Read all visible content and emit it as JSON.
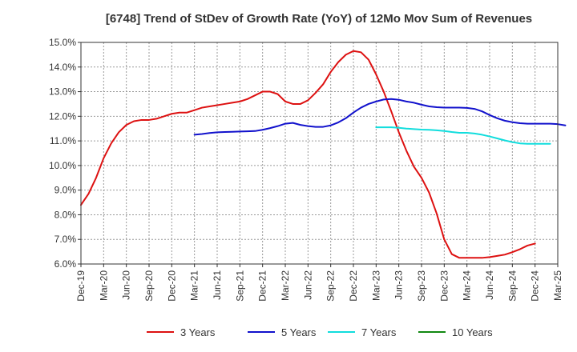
{
  "chart_data": {
    "type": "line",
    "title": "[6748]  Trend of StDev of Growth Rate (YoY) of 12Mo Mov Sum of Revenues",
    "xlabel": "",
    "ylabel": "",
    "ylim": [
      6.0,
      15.0
    ],
    "y_ticks": [
      6.0,
      7.0,
      8.0,
      9.0,
      10.0,
      11.0,
      12.0,
      13.0,
      14.0,
      15.0
    ],
    "y_tick_labels": [
      "6.0%",
      "7.0%",
      "8.0%",
      "9.0%",
      "10.0%",
      "11.0%",
      "12.0%",
      "13.0%",
      "14.0%",
      "15.0%"
    ],
    "x_start": "Dec-19",
    "x_tick_labels": [
      "Dec-19",
      "Mar-20",
      "Jun-20",
      "Sep-20",
      "Dec-20",
      "Mar-21",
      "Jun-21",
      "Sep-21",
      "Dec-21",
      "Mar-22",
      "Jun-22",
      "Sep-22",
      "Dec-22",
      "Mar-23",
      "Jun-23",
      "Sep-23",
      "Dec-23",
      "Mar-24",
      "Jun-24",
      "Sep-24",
      "Dec-24",
      "Mar-25"
    ],
    "grid": "dashed",
    "legend_position": "bottom",
    "series": [
      {
        "name": "3 Years",
        "color": "#dd1111",
        "start_month_index": 0,
        "values": [
          8.4,
          8.85,
          9.5,
          10.3,
          10.9,
          11.35,
          11.65,
          11.8,
          11.85,
          11.85,
          11.9,
          12.0,
          12.1,
          12.15,
          12.15,
          12.25,
          12.35,
          12.4,
          12.45,
          12.5,
          12.55,
          12.6,
          12.7,
          12.85,
          13.0,
          13.0,
          12.9,
          12.6,
          12.5,
          12.5,
          12.65,
          12.95,
          13.3,
          13.8,
          14.2,
          14.5,
          14.65,
          14.6,
          14.3,
          13.7,
          13.0,
          12.2,
          11.35,
          10.6,
          9.95,
          9.5,
          8.9,
          8.05,
          7.0,
          6.4,
          6.25,
          6.25,
          6.25,
          6.25,
          6.28,
          6.33,
          6.38,
          6.48,
          6.6,
          6.75,
          6.83
        ]
      },
      {
        "name": "5 Years",
        "color": "#1111cc",
        "start_month_index": 15,
        "values": [
          11.25,
          11.28,
          11.32,
          11.35,
          11.36,
          11.37,
          11.38,
          11.39,
          11.4,
          11.45,
          11.52,
          11.6,
          11.7,
          11.73,
          11.65,
          11.6,
          11.57,
          11.57,
          11.63,
          11.75,
          11.92,
          12.15,
          12.35,
          12.5,
          12.6,
          12.68,
          12.7,
          12.67,
          12.6,
          12.55,
          12.47,
          12.4,
          12.37,
          12.35,
          12.35,
          12.35,
          12.34,
          12.3,
          12.2,
          12.05,
          11.92,
          11.82,
          11.76,
          11.72,
          11.7,
          11.7,
          11.7,
          11.7,
          11.68,
          11.63
        ]
      },
      {
        "name": "7 Years",
        "color": "#11dddd",
        "start_month_index": 39,
        "values": [
          11.55,
          11.55,
          11.55,
          11.53,
          11.5,
          11.48,
          11.46,
          11.45,
          11.43,
          11.4,
          11.36,
          11.33,
          11.33,
          11.3,
          11.25,
          11.18,
          11.1,
          11.02,
          10.95,
          10.9,
          10.88,
          10.88,
          10.88,
          10.88
        ]
      },
      {
        "name": "10 Years",
        "color": "#118811",
        "start_month_index": 0,
        "values": []
      }
    ]
  }
}
